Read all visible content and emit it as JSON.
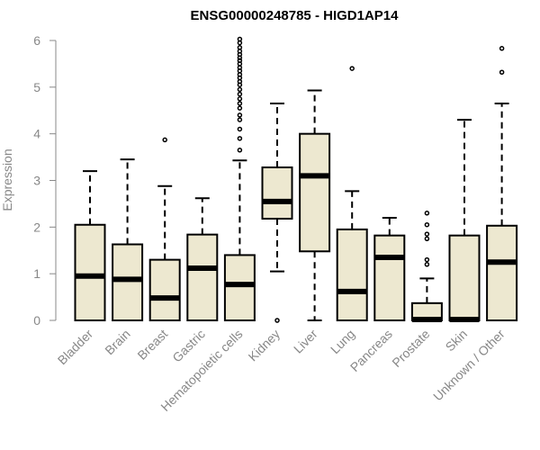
{
  "chart_data": {
    "type": "boxplot",
    "title": "ENSG00000248785 - HIGD1AP14",
    "xlabel": "",
    "ylabel": "Expression",
    "ylim": [
      0,
      6
    ],
    "yticks": [
      0,
      1,
      2,
      3,
      4,
      5,
      6
    ],
    "grid": false,
    "colors": {
      "box_fill": "#ede8d0",
      "stroke": "#000000",
      "axis": "#888888"
    },
    "categories": [
      "Bladder",
      "Brain",
      "Breast",
      "Gastric",
      "Hematopoietic cells",
      "Kidney",
      "Liver",
      "Lung",
      "Pancreas",
      "Prostate",
      "Skin",
      "Unknown / Other"
    ],
    "boxes": [
      {
        "category": "Bladder",
        "whisker_low": 0,
        "q1": 0,
        "median": 0.95,
        "q3": 2.05,
        "whisker_high": 3.2,
        "outliers": []
      },
      {
        "category": "Brain",
        "whisker_low": 0,
        "q1": 0,
        "median": 0.88,
        "q3": 1.63,
        "whisker_high": 3.45,
        "outliers": []
      },
      {
        "category": "Breast",
        "whisker_low": 0,
        "q1": 0,
        "median": 0.48,
        "q3": 1.3,
        "whisker_high": 2.88,
        "outliers": [
          3.87
        ]
      },
      {
        "category": "Gastric",
        "whisker_low": 0,
        "q1": 0,
        "median": 1.12,
        "q3": 1.84,
        "whisker_high": 2.62,
        "outliers": []
      },
      {
        "category": "Hematopoietic cells",
        "whisker_low": 0,
        "q1": 0,
        "median": 0.77,
        "q3": 1.4,
        "whisker_high": 3.43,
        "outliers": [
          3.65,
          3.9,
          4.1,
          4.3,
          4.4,
          4.55,
          4.65,
          4.75,
          4.85,
          4.95,
          5.05,
          5.12,
          5.2,
          5.27,
          5.35,
          5.42,
          5.5,
          5.57,
          5.63,
          5.7,
          5.77,
          5.85,
          5.95,
          6.03
        ]
      },
      {
        "category": "Kidney",
        "whisker_low": 1.05,
        "q1": 2.18,
        "median": 2.55,
        "q3": 3.28,
        "whisker_high": 4.65,
        "outliers": [
          0
        ]
      },
      {
        "category": "Liver",
        "whisker_low": 0,
        "q1": 1.48,
        "median": 3.1,
        "q3": 4.0,
        "whisker_high": 4.93,
        "outliers": []
      },
      {
        "category": "Lung",
        "whisker_low": 0,
        "q1": 0,
        "median": 0.62,
        "q3": 1.95,
        "whisker_high": 2.77,
        "outliers": [
          5.4
        ]
      },
      {
        "category": "Pancreas",
        "whisker_low": 0,
        "q1": 0,
        "median": 1.35,
        "q3": 1.82,
        "whisker_high": 2.2,
        "outliers": []
      },
      {
        "category": "Prostate",
        "whisker_low": 0,
        "q1": 0,
        "median": 0.02,
        "q3": 0.37,
        "whisker_high": 0.9,
        "outliers": [
          1.2,
          1.3,
          1.75,
          1.85,
          2.05,
          2.3
        ]
      },
      {
        "category": "Skin",
        "whisker_low": 0,
        "q1": 0,
        "median": 0.02,
        "q3": 1.82,
        "whisker_high": 4.3,
        "outliers": []
      },
      {
        "category": "Unknown / Other",
        "whisker_low": 0,
        "q1": 0,
        "median": 1.25,
        "q3": 2.03,
        "whisker_high": 4.65,
        "outliers": [
          5.32,
          5.83
        ]
      }
    ]
  }
}
